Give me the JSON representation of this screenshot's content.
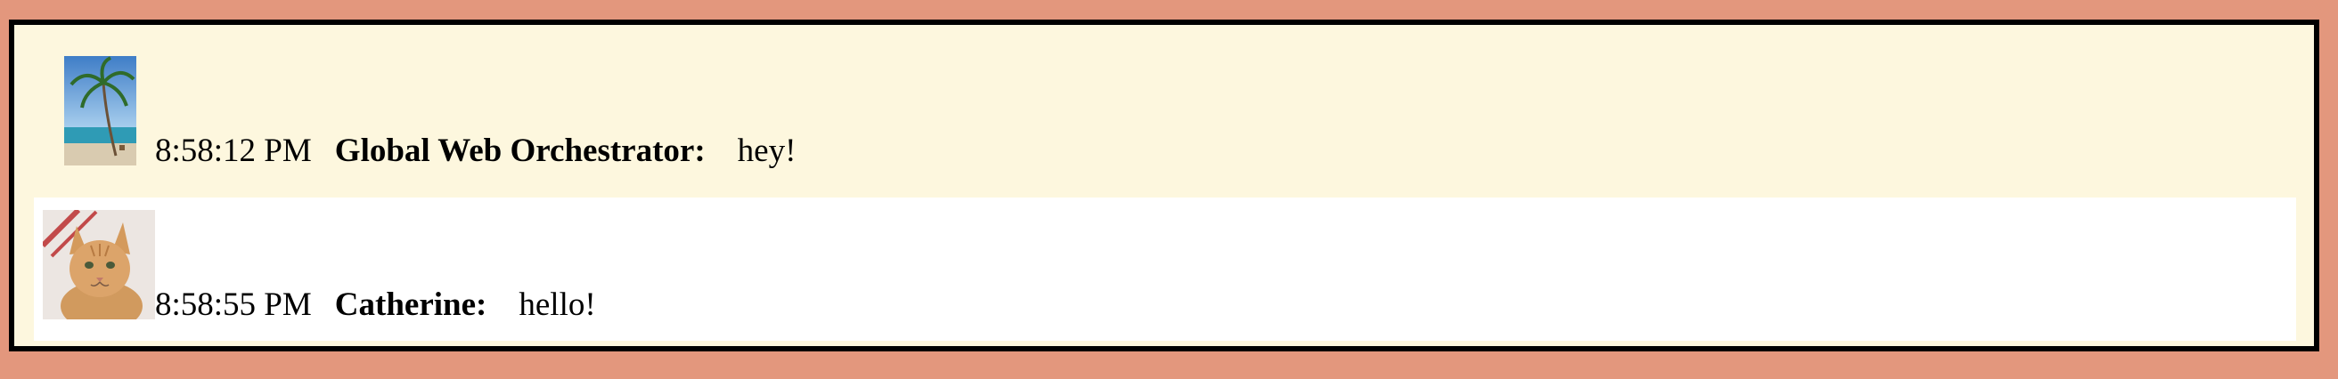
{
  "colors": {
    "page_background": "#e3977d",
    "chat_background": "#fdf7de",
    "alternate_row_background": "#ffffff",
    "border": "#000000"
  },
  "messages": [
    {
      "avatar_icon": "palm-tree-beach-avatar",
      "time": "8:58:12 PM",
      "sender": "Global Web Orchestrator:",
      "text": "hey!"
    },
    {
      "avatar_icon": "orange-cat-avatar",
      "time": "8:58:55 PM",
      "sender": "Catherine:",
      "text": "hello!"
    }
  ]
}
